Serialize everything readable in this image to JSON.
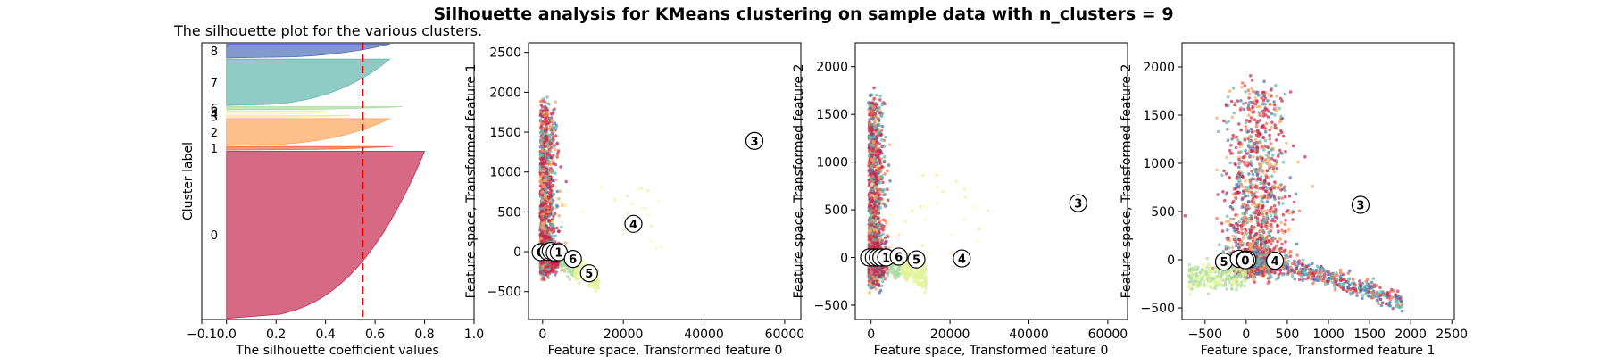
{
  "suptitle": "Silhouette analysis for KMeans clustering on sample data with n_clusters = 9",
  "chart_data": [
    {
      "type": "area",
      "title": "The silhouette plot for the various clusters.",
      "xlabel": "The silhouette coefficient values",
      "ylabel": "Cluster label",
      "xlim": [
        -0.1,
        1.0
      ],
      "xticks": [
        -0.1,
        0.0,
        0.2,
        0.4,
        0.6,
        0.8,
        1.0
      ],
      "xtick_labels": [
        "−0.1",
        "0.0",
        "0.2",
        "0.4",
        "0.6",
        "0.8",
        "1.0"
      ],
      "average_silhouette_score": 0.55,
      "clusters": [
        {
          "label": "0",
          "size": 1440,
          "max_silhouette": 0.8,
          "color": "#c4294f"
        },
        {
          "label": "1",
          "size": 30,
          "max_silhouette": 0.67,
          "color": "#ec6a4a"
        },
        {
          "label": "2",
          "size": 230,
          "max_silhouette": 0.66,
          "color": "#fca55d"
        },
        {
          "label": "3",
          "size": 18,
          "max_silhouette": 0.5,
          "color": "#fee799"
        },
        {
          "label": "4",
          "size": 10,
          "max_silhouette": 0.4,
          "color": "#fbf7b5"
        },
        {
          "label": "5",
          "size": 10,
          "max_silhouette": 0.4,
          "color": "#e3f49a"
        },
        {
          "label": "6",
          "size": 25,
          "max_silhouette": 0.71,
          "color": "#a9dca3"
        },
        {
          "label": "7",
          "size": 400,
          "max_silhouette": 0.66,
          "color": "#61b7ad"
        },
        {
          "label": "8",
          "size": 120,
          "max_silhouette": 0.66,
          "color": "#4d6fb5"
        }
      ]
    },
    {
      "type": "scatter",
      "xlabel": "Feature space, Transformed feature 0",
      "ylabel": "Feature space, Transformed feature 1",
      "xlim": [
        -3500,
        64000
      ],
      "ylim": [
        -850,
        2620
      ],
      "xticks": [
        0,
        20000,
        40000,
        60000
      ],
      "yticks": [
        -500,
        0,
        500,
        1000,
        1500,
        2000,
        2500
      ],
      "centers": [
        {
          "label": "0",
          "x": -500,
          "y": -5
        },
        {
          "label": "7",
          "x": 1300,
          "y": 0
        },
        {
          "label": "2",
          "x": 2000,
          "y": 10
        },
        {
          "label": "8",
          "x": 3000,
          "y": -10
        },
        {
          "label": "1",
          "x": 4000,
          "y": -5
        },
        {
          "label": "6",
          "x": 7500,
          "y": -90
        },
        {
          "label": "5",
          "x": 11500,
          "y": -270
        },
        {
          "label": "4",
          "x": 22500,
          "y": 350
        },
        {
          "label": "3",
          "x": 52500,
          "y": 1390
        }
      ]
    },
    {
      "type": "scatter",
      "xlabel": "Feature space, Transformed feature 0",
      "ylabel": "Feature space, Transformed feature 2",
      "xlim": [
        -4000,
        65000
      ],
      "ylim": [
        -650,
        2250
      ],
      "xticks": [
        0,
        20000,
        40000,
        60000
      ],
      "yticks": [
        -500,
        0,
        500,
        1000,
        1500,
        2000
      ],
      "centers": [
        {
          "label": "0",
          "x": -500,
          "y": 0
        },
        {
          "label": "7",
          "x": 700,
          "y": 0
        },
        {
          "label": "2",
          "x": 1700,
          "y": 0
        },
        {
          "label": "8",
          "x": 2600,
          "y": 0
        },
        {
          "label": "1",
          "x": 3800,
          "y": 0
        },
        {
          "label": "6",
          "x": 7000,
          "y": 10
        },
        {
          "label": "5",
          "x": 11500,
          "y": -20
        },
        {
          "label": "4",
          "x": 23000,
          "y": -10
        },
        {
          "label": "3",
          "x": 52500,
          "y": 570
        }
      ]
    },
    {
      "type": "scatter",
      "xlabel": "Feature space, Transformed feature 1",
      "ylabel": "Feature space, Transformed feature 2",
      "xlim": [
        -780,
        2530
      ],
      "ylim": [
        -620,
        2250
      ],
      "xticks": [
        -500,
        0,
        500,
        1000,
        1500,
        2000,
        2500
      ],
      "yticks": [
        -500,
        0,
        500,
        1000,
        1500,
        2000
      ],
      "centers": [
        {
          "label": "5",
          "x": -270,
          "y": -20
        },
        {
          "label": "6",
          "x": -90,
          "y": 10
        },
        {
          "label": "8",
          "x": -20,
          "y": 0
        },
        {
          "label": "7",
          "x": 5,
          "y": 0
        },
        {
          "label": "2",
          "x": 15,
          "y": 0
        },
        {
          "label": "0",
          "x": -10,
          "y": -5
        },
        {
          "label": "4",
          "x": 350,
          "y": -10
        },
        {
          "label": "3",
          "x": 1390,
          "y": 570
        }
      ]
    }
  ]
}
